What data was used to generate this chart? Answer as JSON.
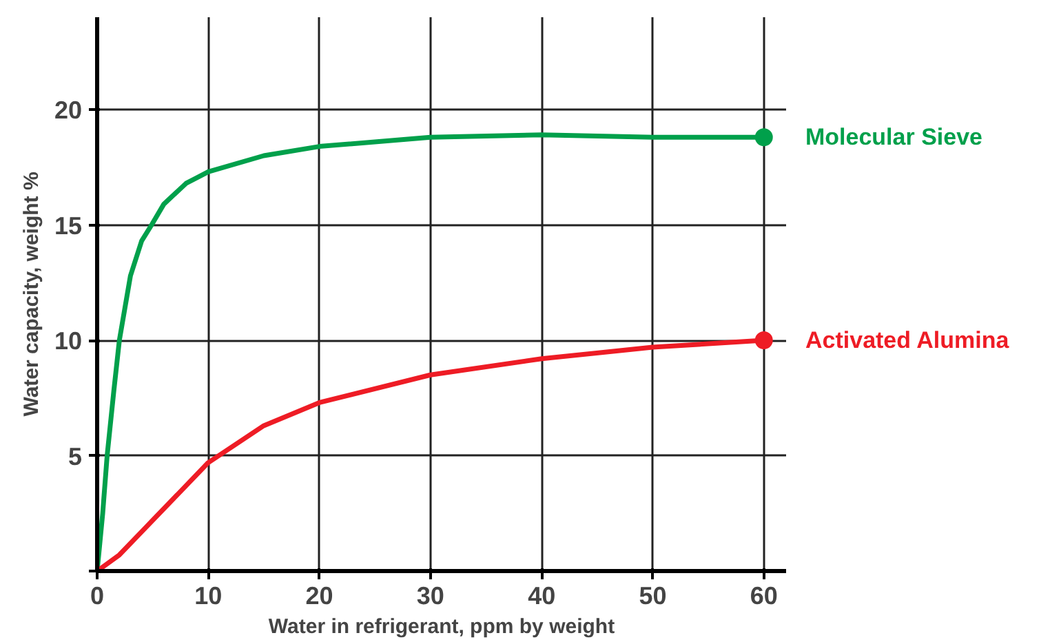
{
  "chart_data": {
    "type": "line",
    "xlabel": "Water in refrigerant, ppm by weight",
    "ylabel": "Water capacity, weight %",
    "xlim": [
      0,
      62
    ],
    "ylim": [
      0,
      24
    ],
    "xticks": [
      0,
      10,
      20,
      30,
      40,
      50,
      60
    ],
    "yticks": [
      {
        "value": 0,
        "label": null
      },
      5,
      10,
      15,
      20
    ],
    "grid": true,
    "series": [
      {
        "name": "Molecular Sieve",
        "color": "#00a04b",
        "x": [
          0,
          0.5,
          0.9,
          1.5,
          2,
          3,
          4,
          4.9,
          6,
          8,
          10,
          15,
          20,
          30,
          40,
          50,
          60
        ],
        "values": [
          0,
          2.5,
          5,
          7.8,
          10,
          12.8,
          14.3,
          15,
          15.9,
          16.8,
          17.3,
          18,
          18.4,
          18.8,
          18.9,
          18.8,
          18.8
        ]
      },
      {
        "name": "Activated Alumina",
        "color": "#ee1c25",
        "x": [
          0,
          2,
          5,
          10,
          15,
          20,
          30,
          40,
          50,
          60
        ],
        "values": [
          0,
          0.7,
          2.2,
          4.7,
          6.3,
          7.3,
          8.5,
          9.2,
          9.7,
          10
        ]
      }
    ]
  }
}
